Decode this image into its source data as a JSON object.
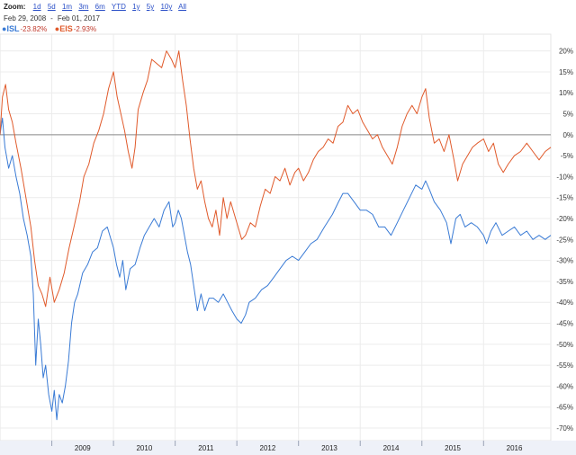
{
  "zoom": {
    "label": "Zoom:",
    "options": [
      "1d",
      "5d",
      "1m",
      "3m",
      "6m",
      "YTD",
      "1y",
      "5y",
      "10y",
      "All"
    ]
  },
  "date_range": {
    "start": "Feb 29, 2008",
    "end": "Feb 01, 2017"
  },
  "legend": [
    {
      "symbol": "ISL",
      "change": "-23.82%",
      "color": "#3a7bd5"
    },
    {
      "symbol": "EIS",
      "change": "-2.93%",
      "color": "#e05a2b"
    }
  ],
  "chart_data": {
    "type": "line",
    "title": "",
    "xlabel": "",
    "ylabel": "",
    "xlim": [
      2008.16,
      2017.09
    ],
    "ylim": [
      -73,
      24
    ],
    "x_ticks": [
      "2009",
      "2010",
      "2011",
      "2012",
      "2013",
      "2014",
      "2015",
      "2016"
    ],
    "y_ticks": [
      "20%",
      "15%",
      "10%",
      "5%",
      "0%",
      "-5%",
      "-10%",
      "-15%",
      "-20%",
      "-25%",
      "-30%",
      "-35%",
      "-40%",
      "-45%",
      "-50%",
      "-55%",
      "-60%",
      "-65%",
      "-70%"
    ],
    "zero_line": true,
    "grid": true,
    "series": [
      {
        "name": "ISL",
        "color": "#3a7bd5",
        "points": [
          [
            2008.16,
            0
          ],
          [
            2008.2,
            4
          ],
          [
            2008.24,
            -3
          ],
          [
            2008.3,
            -8
          ],
          [
            2008.36,
            -5
          ],
          [
            2008.42,
            -10
          ],
          [
            2008.48,
            -14
          ],
          [
            2008.54,
            -20
          ],
          [
            2008.6,
            -24
          ],
          [
            2008.66,
            -29
          ],
          [
            2008.7,
            -38
          ],
          [
            2008.74,
            -55
          ],
          [
            2008.78,
            -44
          ],
          [
            2008.82,
            -50
          ],
          [
            2008.86,
            -58
          ],
          [
            2008.9,
            -55
          ],
          [
            2008.95,
            -62
          ],
          [
            2009.0,
            -66
          ],
          [
            2009.04,
            -61
          ],
          [
            2009.08,
            -68
          ],
          [
            2009.12,
            -62
          ],
          [
            2009.17,
            -64
          ],
          [
            2009.22,
            -60
          ],
          [
            2009.27,
            -54
          ],
          [
            2009.32,
            -45
          ],
          [
            2009.37,
            -40
          ],
          [
            2009.42,
            -38
          ],
          [
            2009.5,
            -33
          ],
          [
            2009.58,
            -31
          ],
          [
            2009.66,
            -28
          ],
          [
            2009.74,
            -27
          ],
          [
            2009.82,
            -23
          ],
          [
            2009.9,
            -22
          ],
          [
            2010.0,
            -27
          ],
          [
            2010.05,
            -31
          ],
          [
            2010.1,
            -34
          ],
          [
            2010.15,
            -30
          ],
          [
            2010.2,
            -37
          ],
          [
            2010.27,
            -32
          ],
          [
            2010.35,
            -31
          ],
          [
            2010.43,
            -27
          ],
          [
            2010.5,
            -24
          ],
          [
            2010.58,
            -22
          ],
          [
            2010.66,
            -20
          ],
          [
            2010.74,
            -22
          ],
          [
            2010.82,
            -18
          ],
          [
            2010.9,
            -16
          ],
          [
            2010.96,
            -22
          ],
          [
            2011.0,
            -21
          ],
          [
            2011.05,
            -18
          ],
          [
            2011.1,
            -20
          ],
          [
            2011.15,
            -24
          ],
          [
            2011.2,
            -28
          ],
          [
            2011.25,
            -31
          ],
          [
            2011.3,
            -36
          ],
          [
            2011.36,
            -42
          ],
          [
            2011.42,
            -38
          ],
          [
            2011.48,
            -42
          ],
          [
            2011.55,
            -39
          ],
          [
            2011.62,
            -39
          ],
          [
            2011.7,
            -40
          ],
          [
            2011.78,
            -38
          ],
          [
            2011.85,
            -40
          ],
          [
            2011.92,
            -42
          ],
          [
            2012.0,
            -44
          ],
          [
            2012.07,
            -45
          ],
          [
            2012.14,
            -43
          ],
          [
            2012.2,
            -40
          ],
          [
            2012.3,
            -39
          ],
          [
            2012.4,
            -37
          ],
          [
            2012.5,
            -36
          ],
          [
            2012.6,
            -34
          ],
          [
            2012.7,
            -32
          ],
          [
            2012.8,
            -30
          ],
          [
            2012.9,
            -29
          ],
          [
            2013.0,
            -30
          ],
          [
            2013.1,
            -28
          ],
          [
            2013.2,
            -26
          ],
          [
            2013.3,
            -25
          ],
          [
            2013.42,
            -22
          ],
          [
            2013.55,
            -19
          ],
          [
            2013.65,
            -16
          ],
          [
            2013.72,
            -14
          ],
          [
            2013.8,
            -14
          ],
          [
            2013.9,
            -16
          ],
          [
            2014.0,
            -18
          ],
          [
            2014.1,
            -18
          ],
          [
            2014.2,
            -19
          ],
          [
            2014.3,
            -22
          ],
          [
            2014.4,
            -22
          ],
          [
            2014.5,
            -24
          ],
          [
            2014.6,
            -21
          ],
          [
            2014.7,
            -18
          ],
          [
            2014.8,
            -15
          ],
          [
            2014.9,
            -12
          ],
          [
            2015.0,
            -13
          ],
          [
            2015.06,
            -11
          ],
          [
            2015.12,
            -13
          ],
          [
            2015.2,
            -16
          ],
          [
            2015.3,
            -18
          ],
          [
            2015.4,
            -21
          ],
          [
            2015.47,
            -26
          ],
          [
            2015.55,
            -20
          ],
          [
            2015.62,
            -19
          ],
          [
            2015.7,
            -22
          ],
          [
            2015.8,
            -21
          ],
          [
            2015.9,
            -22
          ],
          [
            2016.0,
            -24
          ],
          [
            2016.05,
            -26
          ],
          [
            2016.12,
            -23
          ],
          [
            2016.2,
            -21
          ],
          [
            2016.3,
            -24
          ],
          [
            2016.4,
            -23
          ],
          [
            2016.5,
            -22
          ],
          [
            2016.6,
            -24
          ],
          [
            2016.7,
            -23
          ],
          [
            2016.8,
            -25
          ],
          [
            2016.9,
            -24
          ],
          [
            2017.0,
            -25
          ],
          [
            2017.09,
            -24
          ]
        ]
      },
      {
        "name": "EIS",
        "color": "#e05a2b",
        "points": [
          [
            2008.16,
            0
          ],
          [
            2008.2,
            9
          ],
          [
            2008.25,
            12
          ],
          [
            2008.3,
            6
          ],
          [
            2008.36,
            3
          ],
          [
            2008.42,
            -2
          ],
          [
            2008.5,
            -8
          ],
          [
            2008.58,
            -15
          ],
          [
            2008.66,
            -22
          ],
          [
            2008.72,
            -30
          ],
          [
            2008.78,
            -36
          ],
          [
            2008.84,
            -38
          ],
          [
            2008.9,
            -41
          ],
          [
            2008.97,
            -34
          ],
          [
            2009.04,
            -40
          ],
          [
            2009.12,
            -37
          ],
          [
            2009.2,
            -33
          ],
          [
            2009.28,
            -27
          ],
          [
            2009.36,
            -22
          ],
          [
            2009.45,
            -16
          ],
          [
            2009.52,
            -10
          ],
          [
            2009.6,
            -7
          ],
          [
            2009.68,
            -2
          ],
          [
            2009.76,
            1
          ],
          [
            2009.84,
            5
          ],
          [
            2009.92,
            11
          ],
          [
            2010.0,
            15
          ],
          [
            2010.06,
            9
          ],
          [
            2010.12,
            5
          ],
          [
            2010.18,
            1
          ],
          [
            2010.24,
            -4
          ],
          [
            2010.3,
            -8
          ],
          [
            2010.35,
            -3
          ],
          [
            2010.4,
            6
          ],
          [
            2010.48,
            10
          ],
          [
            2010.55,
            13
          ],
          [
            2010.62,
            18
          ],
          [
            2010.7,
            17
          ],
          [
            2010.78,
            16
          ],
          [
            2010.86,
            20
          ],
          [
            2010.94,
            18
          ],
          [
            2011.0,
            16
          ],
          [
            2011.06,
            20
          ],
          [
            2011.12,
            13
          ],
          [
            2011.18,
            7
          ],
          [
            2011.24,
            -1
          ],
          [
            2011.3,
            -8
          ],
          [
            2011.36,
            -13
          ],
          [
            2011.42,
            -11
          ],
          [
            2011.48,
            -16
          ],
          [
            2011.54,
            -20
          ],
          [
            2011.6,
            -22
          ],
          [
            2011.66,
            -18
          ],
          [
            2011.72,
            -24
          ],
          [
            2011.78,
            -15
          ],
          [
            2011.84,
            -20
          ],
          [
            2011.9,
            -16
          ],
          [
            2011.96,
            -19
          ],
          [
            2012.02,
            -22
          ],
          [
            2012.08,
            -25
          ],
          [
            2012.14,
            -24
          ],
          [
            2012.22,
            -21
          ],
          [
            2012.3,
            -22
          ],
          [
            2012.38,
            -17
          ],
          [
            2012.46,
            -13
          ],
          [
            2012.54,
            -14
          ],
          [
            2012.62,
            -10
          ],
          [
            2012.7,
            -11
          ],
          [
            2012.78,
            -8
          ],
          [
            2012.86,
            -12
          ],
          [
            2012.94,
            -9
          ],
          [
            2013.0,
            -8
          ],
          [
            2013.08,
            -11
          ],
          [
            2013.16,
            -9
          ],
          [
            2013.24,
            -6
          ],
          [
            2013.32,
            -4
          ],
          [
            2013.4,
            -3
          ],
          [
            2013.48,
            -1
          ],
          [
            2013.56,
            -2
          ],
          [
            2013.64,
            2
          ],
          [
            2013.72,
            3
          ],
          [
            2013.8,
            7
          ],
          [
            2013.88,
            5
          ],
          [
            2013.96,
            6
          ],
          [
            2014.04,
            3
          ],
          [
            2014.12,
            1
          ],
          [
            2014.2,
            -1
          ],
          [
            2014.28,
            0
          ],
          [
            2014.36,
            -3
          ],
          [
            2014.44,
            -5
          ],
          [
            2014.52,
            -7
          ],
          [
            2014.6,
            -3
          ],
          [
            2014.68,
            2
          ],
          [
            2014.76,
            5
          ],
          [
            2014.84,
            7
          ],
          [
            2014.92,
            5
          ],
          [
            2015.0,
            9
          ],
          [
            2015.06,
            11
          ],
          [
            2015.12,
            4
          ],
          [
            2015.2,
            -2
          ],
          [
            2015.28,
            -1
          ],
          [
            2015.36,
            -4
          ],
          [
            2015.44,
            0
          ],
          [
            2015.52,
            -6
          ],
          [
            2015.58,
            -11
          ],
          [
            2015.66,
            -7
          ],
          [
            2015.74,
            -5
          ],
          [
            2015.82,
            -3
          ],
          [
            2015.9,
            -2
          ],
          [
            2016.0,
            -1
          ],
          [
            2016.08,
            -4
          ],
          [
            2016.16,
            -2
          ],
          [
            2016.24,
            -7
          ],
          [
            2016.32,
            -9
          ],
          [
            2016.4,
            -7
          ],
          [
            2016.5,
            -5
          ],
          [
            2016.6,
            -4
          ],
          [
            2016.7,
            -2
          ],
          [
            2016.8,
            -4
          ],
          [
            2016.9,
            -6
          ],
          [
            2017.0,
            -4
          ],
          [
            2017.09,
            -3
          ]
        ]
      }
    ]
  }
}
